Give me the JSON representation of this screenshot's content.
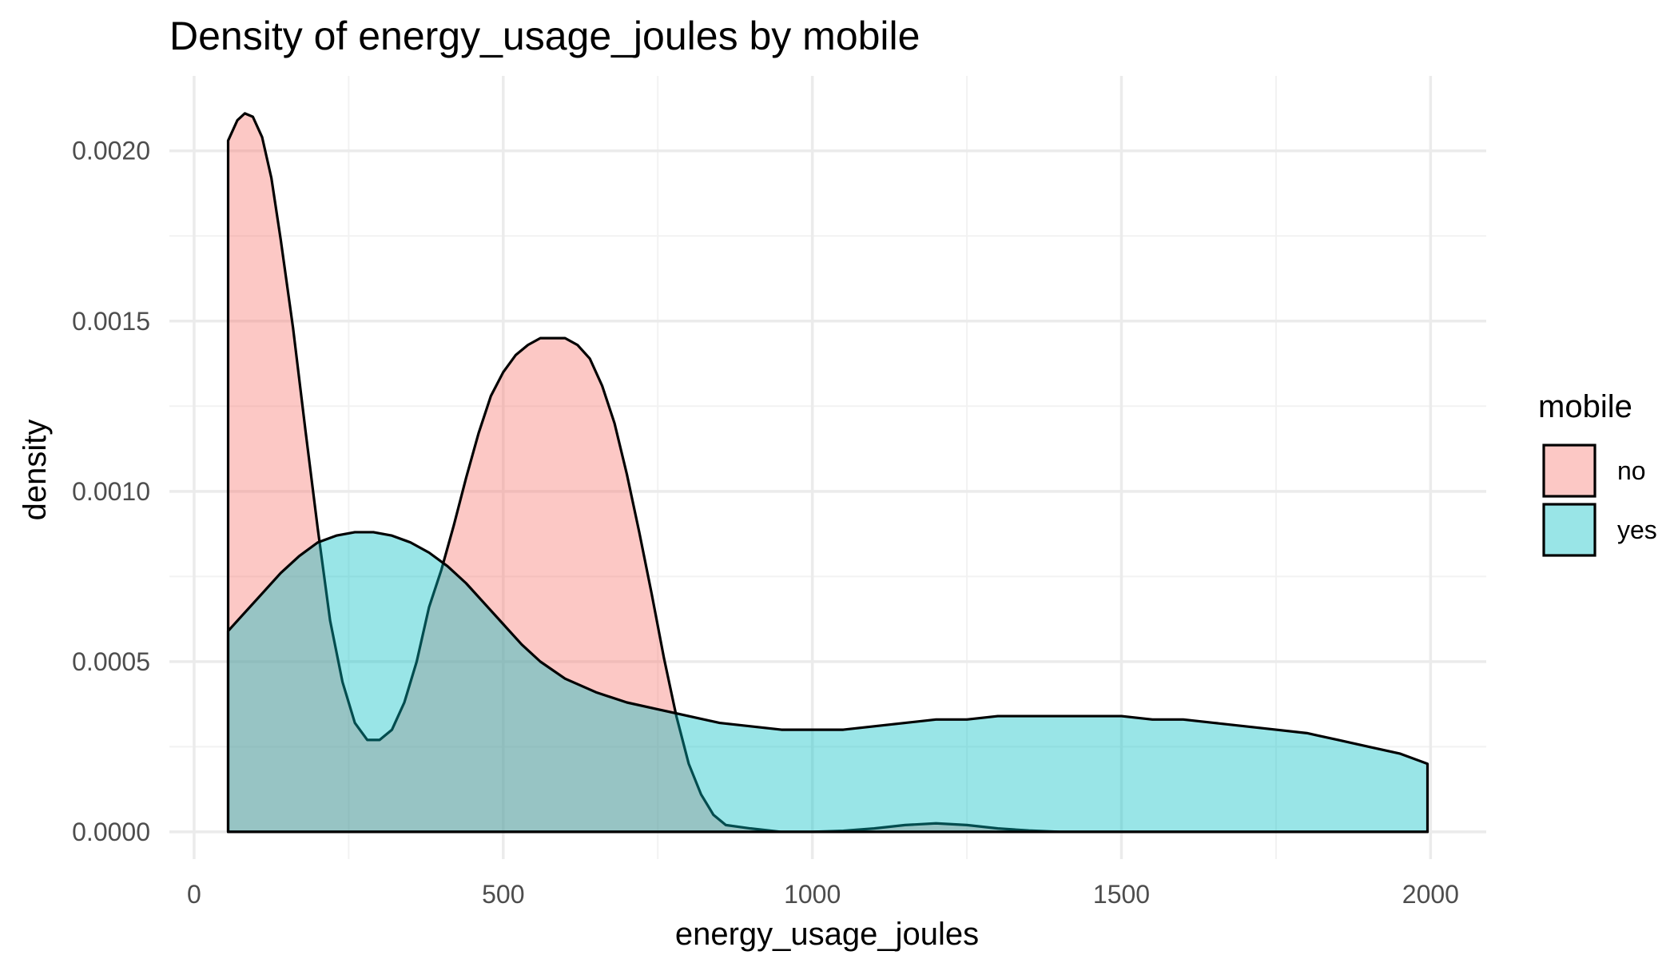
{
  "chart_data": {
    "type": "area",
    "title": "Density of energy_usage_joules by mobile",
    "xlabel": "energy_usage_joules",
    "ylabel": "density",
    "xlim": [
      -40,
      2090
    ],
    "ylim": [
      -8e-05,
      0.00222
    ],
    "x_ticks": [
      0,
      500,
      1000,
      1500,
      2000
    ],
    "x_tick_labels": [
      "0",
      "500",
      "1000",
      "1500",
      "2000"
    ],
    "y_ticks": [
      0,
      0.0005,
      0.001,
      0.0015,
      0.002
    ],
    "y_tick_labels": [
      "0.0000",
      "0.0005",
      "0.0010",
      "0.0015",
      "0.0020"
    ],
    "grid": true,
    "legend": {
      "title": "mobile",
      "placement": "right"
    },
    "series": [
      {
        "name": "no",
        "color": "#F8766D",
        "fill_opacity": 0.4,
        "points": [
          [
            55,
            0.00203
          ],
          [
            70,
            0.00209
          ],
          [
            82,
            0.00211
          ],
          [
            95,
            0.0021
          ],
          [
            110,
            0.00204
          ],
          [
            125,
            0.00192
          ],
          [
            140,
            0.00174
          ],
          [
            160,
            0.00148
          ],
          [
            180,
            0.00118
          ],
          [
            200,
            0.00089
          ],
          [
            220,
            0.00062
          ],
          [
            240,
            0.00044
          ],
          [
            260,
            0.00032
          ],
          [
            280,
            0.00027
          ],
          [
            300,
            0.00027
          ],
          [
            320,
            0.0003
          ],
          [
            340,
            0.00038
          ],
          [
            360,
            0.0005
          ],
          [
            380,
            0.00066
          ],
          [
            400,
            0.00077
          ],
          [
            420,
            0.0009
          ],
          [
            440,
            0.00104
          ],
          [
            460,
            0.00117
          ],
          [
            480,
            0.00128
          ],
          [
            500,
            0.00135
          ],
          [
            520,
            0.0014
          ],
          [
            540,
            0.00143
          ],
          [
            560,
            0.00145
          ],
          [
            580,
            0.00145
          ],
          [
            600,
            0.00145
          ],
          [
            620,
            0.00143
          ],
          [
            640,
            0.00139
          ],
          [
            660,
            0.00131
          ],
          [
            680,
            0.0012
          ],
          [
            700,
            0.00105
          ],
          [
            720,
            0.00088
          ],
          [
            740,
            0.0007
          ],
          [
            760,
            0.00051
          ],
          [
            780,
            0.00034
          ],
          [
            800,
            0.0002
          ],
          [
            820,
            0.00011
          ],
          [
            840,
            5e-05
          ],
          [
            860,
            2e-05
          ],
          [
            900,
            1e-05
          ],
          [
            950,
            0.0
          ],
          [
            1000,
            0.0
          ],
          [
            1050,
            3e-06
          ],
          [
            1100,
            1e-05
          ],
          [
            1150,
            2e-05
          ],
          [
            1200,
            2.5e-05
          ],
          [
            1250,
            2e-05
          ],
          [
            1300,
            1e-05
          ],
          [
            1350,
            4e-06
          ],
          [
            1400,
            0.0
          ],
          [
            1500,
            0.0
          ],
          [
            1600,
            0.0
          ],
          [
            1700,
            0.0
          ],
          [
            1800,
            0.0
          ],
          [
            1900,
            0.0
          ],
          [
            1995,
            0.0
          ]
        ]
      },
      {
        "name": "yes",
        "color": "#00BFC4",
        "fill_opacity": 0.4,
        "points": [
          [
            55,
            0.00059
          ],
          [
            80,
            0.00064
          ],
          [
            110,
            0.0007
          ],
          [
            140,
            0.00076
          ],
          [
            170,
            0.00081
          ],
          [
            200,
            0.00085
          ],
          [
            230,
            0.00087
          ],
          [
            260,
            0.00088
          ],
          [
            290,
            0.00088
          ],
          [
            320,
            0.00087
          ],
          [
            350,
            0.00085
          ],
          [
            380,
            0.00082
          ],
          [
            410,
            0.00078
          ],
          [
            440,
            0.00073
          ],
          [
            470,
            0.00067
          ],
          [
            500,
            0.00061
          ],
          [
            530,
            0.00055
          ],
          [
            560,
            0.0005
          ],
          [
            600,
            0.00045
          ],
          [
            650,
            0.00041
          ],
          [
            700,
            0.00038
          ],
          [
            750,
            0.00036
          ],
          [
            800,
            0.00034
          ],
          [
            850,
            0.00032
          ],
          [
            900,
            0.00031
          ],
          [
            950,
            0.0003
          ],
          [
            1000,
            0.0003
          ],
          [
            1050,
            0.0003
          ],
          [
            1100,
            0.00031
          ],
          [
            1150,
            0.00032
          ],
          [
            1200,
            0.00033
          ],
          [
            1250,
            0.00033
          ],
          [
            1300,
            0.00034
          ],
          [
            1350,
            0.00034
          ],
          [
            1400,
            0.00034
          ],
          [
            1450,
            0.00034
          ],
          [
            1500,
            0.00034
          ],
          [
            1550,
            0.00033
          ],
          [
            1600,
            0.00033
          ],
          [
            1650,
            0.00032
          ],
          [
            1700,
            0.00031
          ],
          [
            1750,
            0.0003
          ],
          [
            1800,
            0.00029
          ],
          [
            1850,
            0.00027
          ],
          [
            1900,
            0.00025
          ],
          [
            1950,
            0.00023
          ],
          [
            1995,
            0.0002
          ]
        ]
      }
    ]
  }
}
